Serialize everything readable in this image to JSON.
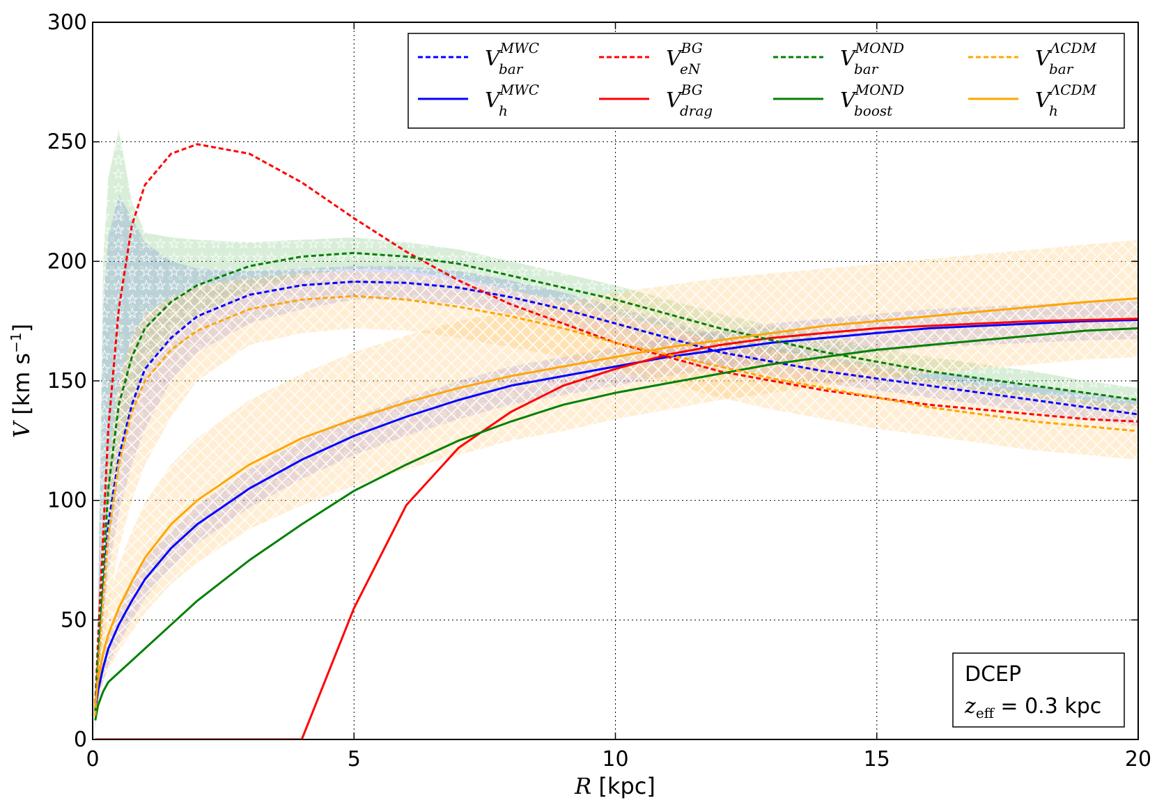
{
  "chart_data": {
    "type": "line",
    "xlabel": {
      "var": "R",
      "unit": "[kpc]"
    },
    "ylabel": {
      "var": "V",
      "unit_main": "[km s",
      "unit_sup": "−1",
      "unit_close": "]"
    },
    "xlim": [
      0,
      20
    ],
    "ylim": [
      0,
      300
    ],
    "xticks": [
      0,
      5,
      10,
      15,
      20
    ],
    "yticks": [
      0,
      50,
      100,
      150,
      200,
      250,
      300
    ],
    "grid": true,
    "legend": {
      "placement": "top-right",
      "columns": 4
    },
    "annotation": {
      "line1": "DCEP",
      "var": "z",
      "sub": "eff",
      "rest": " = 0.3 kpc"
    },
    "x": [
      0.05,
      0.1,
      0.2,
      0.3,
      0.5,
      0.75,
      1,
      1.5,
      2,
      3,
      4,
      5,
      6,
      7,
      8,
      9,
      10,
      11,
      12,
      13,
      14,
      15,
      16,
      17,
      18,
      19,
      20
    ],
    "series": [
      {
        "name": "V",
        "sup": "MWC",
        "sub": "bar",
        "color": "#0000ff",
        "dash": true,
        "values": [
          10,
          30,
          62,
          90,
          118,
          140,
          155,
          168,
          177,
          186,
          190,
          191.5,
          191,
          189,
          185,
          180,
          174,
          168,
          162,
          158,
          154,
          151,
          148,
          145,
          142,
          139,
          136
        ],
        "band": [
          [
            5,
            12
          ],
          [
            20,
            45
          ],
          [
            45,
            180
          ],
          [
            70,
            210
          ],
          [
            95,
            228
          ],
          [
            115,
            218
          ],
          [
            130,
            208
          ],
          [
            150,
            200
          ],
          [
            162,
            197
          ],
          [
            174,
            196
          ],
          [
            180,
            197
          ],
          [
            184,
            198
          ],
          [
            184,
            198
          ],
          [
            182,
            196
          ],
          [
            178,
            192
          ],
          [
            173,
            187
          ],
          [
            167,
            181
          ],
          [
            161,
            175
          ],
          [
            156,
            169
          ],
          [
            152,
            164
          ],
          [
            149,
            160
          ],
          [
            146,
            157
          ],
          [
            143,
            154
          ],
          [
            140,
            151
          ],
          [
            137,
            148
          ],
          [
            134,
            145
          ],
          [
            131,
            142
          ]
        ]
      },
      {
        "name": "V",
        "sup": "MWC",
        "sub": "h",
        "color": "#0000ff",
        "dash": false,
        "values": [
          12,
          20,
          30,
          38,
          48,
          58,
          67,
          80,
          90,
          105,
          117,
          127,
          135,
          142,
          148,
          152,
          156,
          160,
          163,
          166,
          168,
          170,
          172,
          173,
          174,
          175,
          175.5
        ],
        "band": [
          [
            8,
            16
          ],
          [
            15,
            25
          ],
          [
            24,
            36
          ],
          [
            31,
            45
          ],
          [
            40,
            56
          ],
          [
            50,
            66
          ],
          [
            59,
            75
          ],
          [
            72,
            88
          ],
          [
            82,
            98
          ],
          [
            97,
            113
          ],
          [
            109,
            125
          ],
          [
            119,
            135
          ],
          [
            127,
            143
          ],
          [
            134,
            150
          ],
          [
            140,
            156
          ],
          [
            144,
            160
          ],
          [
            148,
            164
          ],
          [
            152,
            168
          ],
          [
            155,
            171
          ],
          [
            158,
            174
          ],
          [
            160,
            176
          ],
          [
            162,
            178
          ],
          [
            164,
            180
          ],
          [
            165,
            181
          ],
          [
            166,
            182
          ],
          [
            167,
            183
          ],
          [
            167.5,
            183.5
          ]
        ]
      },
      {
        "name": "V",
        "sup": "BG",
        "sub": "eN",
        "color": "#ff0000",
        "dash": true,
        "values": [
          15,
          40,
          85,
          130,
          180,
          215,
          232,
          245,
          249,
          245,
          233,
          218,
          204,
          192,
          182,
          174,
          166,
          160,
          154,
          150,
          146,
          143,
          140,
          138,
          136,
          134,
          133
        ]
      },
      {
        "name": "V",
        "sup": "BG",
        "sub": "drag",
        "color": "#ff0000",
        "dash": false,
        "values": [
          0,
          0,
          0,
          0,
          0,
          0,
          0,
          0,
          0,
          0,
          0,
          55,
          98,
          122,
          137,
          148,
          155,
          161,
          165,
          168,
          170,
          172,
          173,
          174,
          175,
          175.5,
          176
        ]
      },
      {
        "name": "V",
        "sup": "MOND",
        "sub": "bar",
        "color": "#008000",
        "dash": true,
        "values": [
          12,
          35,
          70,
          105,
          140,
          160,
          172,
          183,
          190,
          198,
          202,
          203.5,
          202,
          199,
          194,
          189,
          184,
          178,
          172,
          167,
          162,
          158,
          154,
          151,
          148,
          145,
          142
        ],
        "band": [
          [
            5,
            15
          ],
          [
            20,
            50
          ],
          [
            50,
            200
          ],
          [
            80,
            235
          ],
          [
            110,
            255
          ],
          [
            140,
            225
          ],
          [
            155,
            212
          ],
          [
            170,
            210
          ],
          [
            178,
            209
          ],
          [
            188,
            208
          ],
          [
            194,
            209
          ],
          [
            197,
            210
          ],
          [
            196,
            208
          ],
          [
            193,
            205
          ],
          [
            188,
            200
          ],
          [
            183,
            195
          ],
          [
            178,
            190
          ],
          [
            172,
            184
          ],
          [
            166,
            178
          ],
          [
            161,
            173
          ],
          [
            157,
            168
          ],
          [
            153,
            164
          ],
          [
            149,
            160
          ],
          [
            146,
            157
          ],
          [
            143,
            154
          ],
          [
            140,
            150
          ],
          [
            137,
            147
          ]
        ]
      },
      {
        "name": "V",
        "sup": "MOND",
        "sub": "boost",
        "color": "#008000",
        "dash": false,
        "values": [
          8,
          14,
          20,
          24,
          28,
          33,
          38,
          48,
          58,
          75,
          90,
          104,
          115,
          125,
          133,
          140,
          145,
          149,
          153,
          157,
          160,
          163,
          165,
          167,
          169,
          171,
          172
        ]
      },
      {
        "name": "V",
        "sup": "ΛCDM",
        "sub": "bar",
        "color": "#ffa500",
        "dash": true,
        "values": [
          10,
          28,
          58,
          85,
          115,
          137,
          150,
          163,
          171,
          180,
          184,
          185.5,
          184,
          181,
          177,
          172,
          166,
          161,
          156,
          151,
          147,
          143,
          139,
          136,
          133,
          131,
          129
        ],
        "band": [
          [
            4,
            16
          ],
          [
            15,
            41
          ],
          [
            35,
            80
          ],
          [
            55,
            115
          ],
          [
            80,
            150
          ],
          [
            100,
            168
          ],
          [
            115,
            178
          ],
          [
            135,
            185
          ],
          [
            150,
            190
          ],
          [
            165,
            193
          ],
          [
            170,
            195
          ],
          [
            172,
            196
          ],
          [
            171,
            195
          ],
          [
            168,
            192
          ],
          [
            164,
            188
          ],
          [
            160,
            183
          ],
          [
            154,
            177
          ],
          [
            149,
            172
          ],
          [
            143,
            167
          ],
          [
            138,
            163
          ],
          [
            134,
            159
          ],
          [
            130,
            155
          ],
          [
            127,
            151
          ],
          [
            124,
            148
          ],
          [
            121,
            145
          ],
          [
            119,
            142
          ],
          [
            117,
            140
          ]
        ]
      },
      {
        "name": "V",
        "sup": "ΛCDM",
        "sub": "h",
        "color": "#ffa500",
        "dash": false,
        "values": [
          14,
          24,
          36,
          44,
          55,
          66,
          76,
          90,
          100,
          115,
          126,
          134,
          141,
          147,
          152,
          156,
          160,
          164,
          167,
          170,
          173,
          175,
          177,
          179,
          181,
          183,
          184.5
        ],
        "band": [
          [
            9,
            19
          ],
          [
            16,
            32
          ],
          [
            24,
            48
          ],
          [
            29,
            59
          ],
          [
            37,
            73
          ],
          [
            45,
            87
          ],
          [
            53,
            99
          ],
          [
            65,
            115
          ],
          [
            74,
            126
          ],
          [
            88,
            142
          ],
          [
            98,
            153
          ],
          [
            106,
            162
          ],
          [
            113,
            169
          ],
          [
            119,
            175
          ],
          [
            125,
            179
          ],
          [
            129,
            183
          ],
          [
            134,
            187
          ],
          [
            138,
            190
          ],
          [
            142,
            193
          ],
          [
            145,
            195
          ],
          [
            148,
            197
          ],
          [
            151,
            199
          ],
          [
            153,
            201
          ],
          [
            155,
            203
          ],
          [
            157,
            205
          ],
          [
            159,
            207
          ],
          [
            160,
            209
          ]
        ]
      }
    ]
  }
}
